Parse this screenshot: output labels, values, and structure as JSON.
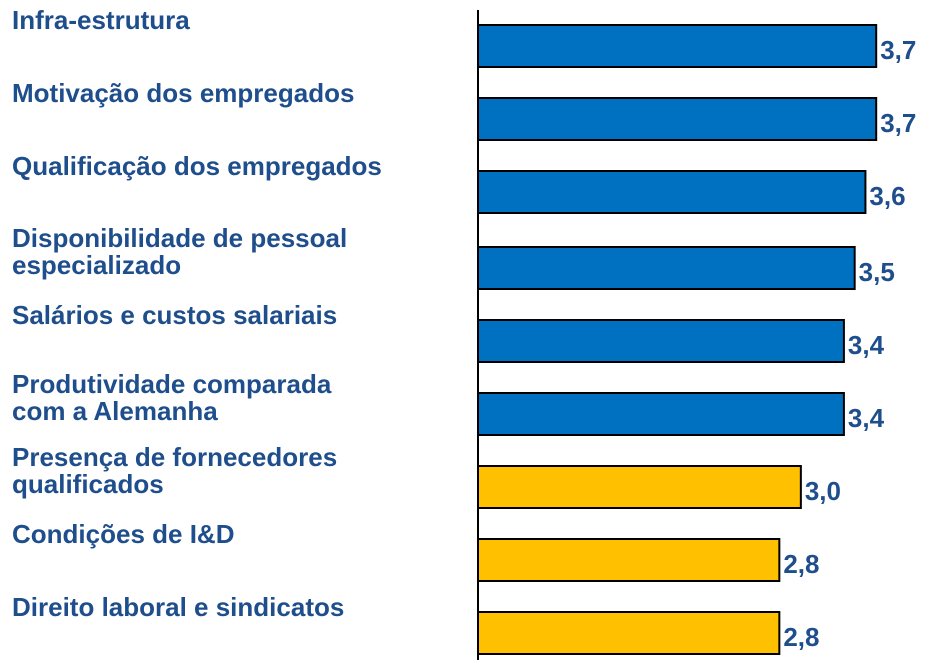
{
  "chart_data": {
    "type": "bar",
    "orientation": "horizontal",
    "categories": [
      "Infra-estrutura",
      "Motivação dos empregados",
      "Qualificação dos empregados",
      "Disponibilidade de pessoal\nespecializado",
      "Salários e custos salariais",
      "Produtividade comparada\ncom a Alemanha",
      "Presença de fornecedores\nqualificados",
      "Condições de I&D",
      "Direito laboral e sindicatos"
    ],
    "values": [
      3.7,
      3.7,
      3.6,
      3.5,
      3.4,
      3.4,
      3.0,
      2.8,
      2.8
    ],
    "value_labels": [
      "3,7",
      "3,7",
      "3,6",
      "3,5",
      "3,4",
      "3,4",
      "3,0",
      "2,8",
      "2,8"
    ],
    "colors": [
      "#0070c0",
      "#0070c0",
      "#0070c0",
      "#0070c0",
      "#0070c0",
      "#0070c0",
      "#ffc000",
      "#ffc000",
      "#ffc000"
    ],
    "xlim": [
      0,
      4.2
    ]
  }
}
